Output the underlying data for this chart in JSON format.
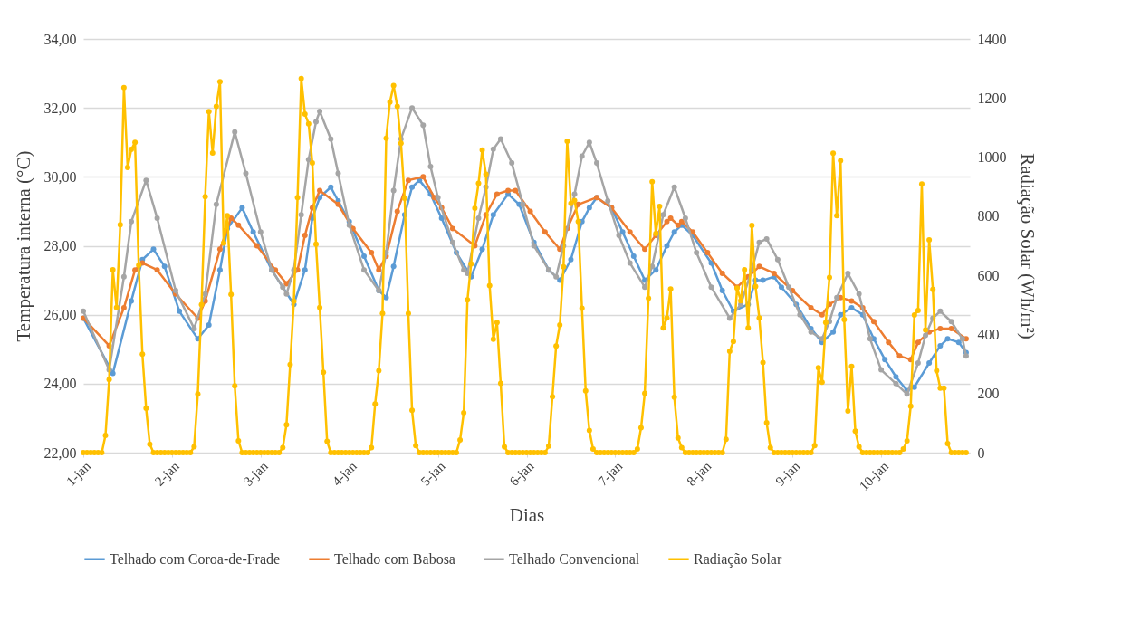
{
  "chart_data": {
    "type": "line",
    "xlabel": "Dias",
    "ylabel": "Temperatura interna (°C)",
    "y2label": "Radiação Solar (Wh/m²)",
    "xlim": [
      "--01-01T00:00",
      "--01-11T00:00"
    ],
    "xticks": [
      {
        "value": "--01-01",
        "label": "1-jan"
      },
      {
        "value": "--01-02",
        "label": "2-jan"
      },
      {
        "value": "--01-03",
        "label": "3-jan"
      },
      {
        "value": "--01-04",
        "label": "4-jan"
      },
      {
        "value": "--01-05",
        "label": "5-jan"
      },
      {
        "value": "--01-06",
        "label": "6-jan"
      },
      {
        "value": "--01-07",
        "label": "7-jan"
      },
      {
        "value": "--01-08",
        "label": "8-jan"
      },
      {
        "value": "--01-09",
        "label": "9-jan"
      },
      {
        "value": "--01-10",
        "label": "10-jan"
      }
    ],
    "ylim": [
      22,
      34
    ],
    "yticks": [
      {
        "value": 22,
        "label": "22,00"
      },
      {
        "value": 24,
        "label": "24,00"
      },
      {
        "value": 26,
        "label": "26,00"
      },
      {
        "value": 28,
        "label": "28,00"
      },
      {
        "value": 30,
        "label": "30,00"
      },
      {
        "value": 32,
        "label": "32,00"
      },
      {
        "value": 34,
        "label": "34,00"
      }
    ],
    "y2lim": [
      0,
      1400
    ],
    "y2ticks": [
      0,
      200,
      400,
      600,
      800,
      1000,
      1200,
      1400
    ],
    "grid": "y",
    "legend": "bottom",
    "marker": "circle",
    "x": [
      "--01-01T00:00",
      "--01-01T01:00",
      "--01-01T02:00",
      "--01-01T03:00",
      "--01-01T04:00",
      "--01-01T05:00",
      "--01-01T06:00",
      "--01-01T07:00",
      "--01-01T08:00",
      "--01-01T09:00",
      "--01-01T10:00",
      "--01-01T11:00",
      "--01-01T12:00",
      "--01-01T13:00",
      "--01-01T14:00",
      "--01-01T15:00",
      "--01-01T16:00",
      "--01-01T17:00",
      "--01-01T18:00",
      "--01-01T19:00",
      "--01-01T20:00",
      "--01-01T21:00",
      "--01-01T22:00",
      "--01-01T23:00",
      "--01-02T00:00",
      "--01-02T01:00",
      "--01-02T02:00",
      "--01-02T03:00",
      "--01-02T04:00",
      "--01-02T05:00",
      "--01-02T06:00",
      "--01-02T07:00",
      "--01-02T08:00",
      "--01-02T09:00",
      "--01-02T10:00",
      "--01-02T11:00",
      "--01-02T12:00",
      "--01-02T13:00",
      "--01-02T14:00",
      "--01-02T15:00",
      "--01-02T16:00",
      "--01-02T17:00",
      "--01-02T18:00",
      "--01-02T19:00",
      "--01-02T20:00",
      "--01-02T21:00",
      "--01-02T22:00",
      "--01-02T23:00",
      "--01-03T00:00",
      "--01-03T01:00",
      "--01-03T02:00",
      "--01-03T03:00",
      "--01-03T04:00",
      "--01-03T05:00",
      "--01-03T06:00",
      "--01-03T07:00",
      "--01-03T08:00",
      "--01-03T09:00",
      "--01-03T10:00",
      "--01-03T11:00",
      "--01-03T12:00",
      "--01-03T13:00",
      "--01-03T14:00",
      "--01-03T15:00",
      "--01-03T16:00",
      "--01-03T17:00",
      "--01-03T18:00",
      "--01-03T19:00",
      "--01-03T20:00",
      "--01-03T21:00",
      "--01-03T22:00",
      "--01-03T23:00",
      "--01-04T00:00",
      "--01-04T01:00",
      "--01-04T02:00",
      "--01-04T03:00",
      "--01-04T04:00",
      "--01-04T05:00",
      "--01-04T06:00",
      "--01-04T07:00",
      "--01-04T08:00",
      "--01-04T09:00",
      "--01-04T10:00",
      "--01-04T11:00",
      "--01-04T12:00",
      "--01-04T13:00",
      "--01-04T14:00",
      "--01-04T15:00",
      "--01-04T16:00",
      "--01-04T17:00",
      "--01-04T18:00",
      "--01-04T19:00",
      "--01-04T20:00",
      "--01-04T21:00",
      "--01-04T22:00",
      "--01-04T23:00",
      "--01-05T00:00",
      "--01-05T01:00",
      "--01-05T02:00",
      "--01-05T03:00",
      "--01-05T04:00",
      "--01-05T05:00",
      "--01-05T06:00",
      "--01-05T07:00",
      "--01-05T08:00",
      "--01-05T09:00",
      "--01-05T10:00",
      "--01-05T11:00",
      "--01-05T12:00",
      "--01-05T13:00",
      "--01-05T14:00",
      "--01-05T15:00",
      "--01-05T16:00",
      "--01-05T17:00",
      "--01-05T18:00",
      "--01-05T19:00",
      "--01-05T20:00",
      "--01-05T21:00",
      "--01-05T22:00",
      "--01-05T23:00",
      "--01-06T00:00",
      "--01-06T01:00",
      "--01-06T02:00",
      "--01-06T03:00",
      "--01-06T04:00",
      "--01-06T05:00",
      "--01-06T06:00",
      "--01-06T07:00",
      "--01-06T08:00",
      "--01-06T09:00",
      "--01-06T10:00",
      "--01-06T11:00",
      "--01-06T12:00",
      "--01-06T13:00",
      "--01-06T14:00",
      "--01-06T15:00",
      "--01-06T16:00",
      "--01-06T17:00",
      "--01-06T18:00",
      "--01-06T19:00",
      "--01-06T20:00",
      "--01-06T21:00",
      "--01-06T22:00",
      "--01-06T23:00",
      "--01-07T00:00",
      "--01-07T01:00",
      "--01-07T02:00",
      "--01-07T03:00",
      "--01-07T04:00",
      "--01-07T05:00",
      "--01-07T06:00",
      "--01-07T07:00",
      "--01-07T08:00",
      "--01-07T09:00",
      "--01-07T10:00",
      "--01-07T11:00",
      "--01-07T12:00",
      "--01-07T13:00",
      "--01-07T14:00",
      "--01-07T15:00",
      "--01-07T16:00",
      "--01-07T17:00",
      "--01-07T18:00",
      "--01-07T19:00",
      "--01-07T20:00",
      "--01-07T21:00",
      "--01-07T22:00",
      "--01-07T23:00",
      "--01-08T00:00",
      "--01-08T01:00",
      "--01-08T02:00",
      "--01-08T03:00",
      "--01-08T04:00",
      "--01-08T05:00",
      "--01-08T06:00",
      "--01-08T07:00",
      "--01-08T08:00",
      "--01-08T09:00",
      "--01-08T10:00",
      "--01-08T11:00",
      "--01-08T12:00",
      "--01-08T13:00",
      "--01-08T14:00",
      "--01-08T15:00",
      "--01-08T16:00",
      "--01-08T17:00",
      "--01-08T18:00",
      "--01-08T19:00",
      "--01-08T20:00",
      "--01-08T21:00",
      "--01-08T22:00",
      "--01-08T23:00",
      "--01-09T00:00",
      "--01-09T01:00",
      "--01-09T02:00",
      "--01-09T03:00",
      "--01-09T04:00",
      "--01-09T05:00",
      "--01-09T06:00",
      "--01-09T07:00",
      "--01-09T08:00",
      "--01-09T09:00",
      "--01-09T10:00",
      "--01-09T11:00",
      "--01-09T12:00",
      "--01-09T13:00",
      "--01-09T14:00",
      "--01-09T15:00",
      "--01-09T16:00",
      "--01-09T17:00",
      "--01-09T18:00",
      "--01-09T19:00",
      "--01-09T20:00",
      "--01-09T21:00",
      "--01-09T22:00",
      "--01-09T23:00",
      "--01-10T00:00",
      "--01-10T01:00",
      "--01-10T02:00",
      "--01-10T03:00",
      "--01-10T04:00",
      "--01-10T05:00",
      "--01-10T06:00",
      "--01-10T07:00",
      "--01-10T08:00",
      "--01-10T09:00",
      "--01-10T10:00",
      "--01-10T11:00",
      "--01-10T12:00",
      "--01-10T13:00",
      "--01-10T14:00",
      "--01-10T15:00",
      "--01-10T16:00",
      "--01-10T17:00",
      "--01-10T18:00",
      "--01-10T19:00",
      "--01-10T20:00",
      "--01-10T21:00",
      "--01-10T22:00",
      "--01-10T23:00"
    ],
    "series": [
      {
        "name": "Telhado com Coroa-de-Frade",
        "color": "#5b9bd5",
        "x": [
          "--01-01T00:00",
          "--01-01T08:00",
          "--01-01T13:00",
          "--01-01T16:00",
          "--01-01T19:00",
          "--01-01T22:00",
          "--01-02T02:00",
          "--01-02T07:00",
          "--01-02T10:00",
          "--01-02T13:00",
          "--01-02T15:00",
          "--01-02T19:00",
          "--01-02T22:00",
          "--01-03T03:00",
          "--01-03T09:00",
          "--01-03T12:00",
          "--01-03T14:00",
          "--01-03T16:00",
          "--01-03T19:00",
          "--01-03T21:00",
          "--01-04T00:00",
          "--01-04T04:00",
          "--01-04T08:00",
          "--01-04T10:00",
          "--01-04T12:00",
          "--01-04T15:00",
          "--01-04T17:00",
          "--01-04T19:00",
          "--01-04T22:00",
          "--01-05T01:00",
          "--01-05T05:00",
          "--01-05T09:00",
          "--01-05T12:00",
          "--01-05T15:00",
          "--01-05T19:00",
          "--01-05T22:00",
          "--01-06T02:00",
          "--01-06T06:00",
          "--01-06T09:00",
          "--01-06T12:00",
          "--01-06T15:00",
          "--01-06T17:00",
          "--01-06T19:00",
          "--01-06T23:00",
          "--01-07T02:00",
          "--01-07T05:00",
          "--01-07T08:00",
          "--01-07T11:00",
          "--01-07T14:00",
          "--01-07T16:00",
          "--01-07T18:00",
          "--01-07T21:00",
          "--01-08T02:00",
          "--01-08T05:00",
          "--01-08T08:00",
          "--01-08T12:00",
          "--01-08T14:00",
          "--01-08T16:00",
          "--01-08T19:00",
          "--01-08T21:00",
          "--01-09T01:00",
          "--01-09T05:00",
          "--01-09T08:00",
          "--01-09T11:00",
          "--01-09T13:00",
          "--01-09T16:00",
          "--01-09T19:00",
          "--01-09T22:00",
          "--01-10T01:00",
          "--01-10T04:00",
          "--01-10T07:00",
          "--01-10T09:00",
          "--01-10T13:00",
          "--01-10T16:00",
          "--01-10T18:00",
          "--01-10T21:00",
          "--01-10T23:00"
        ],
        "values": [
          25.9,
          24.3,
          26.4,
          27.6,
          27.9,
          27.4,
          26.1,
          25.3,
          25.7,
          27.3,
          28.5,
          29.1,
          28.4,
          27.3,
          26.3,
          27.3,
          28.8,
          29.4,
          29.7,
          29.3,
          28.7,
          27.7,
          26.7,
          26.5,
          27.4,
          28.9,
          29.7,
          29.9,
          29.5,
          28.8,
          27.8,
          27.1,
          27.9,
          28.9,
          29.5,
          29.2,
          28.1,
          27.3,
          27.0,
          27.6,
          28.7,
          29.1,
          29.4,
          29.1,
          28.4,
          27.7,
          27.0,
          27.3,
          28.0,
          28.4,
          28.6,
          28.3,
          27.5,
          26.7,
          26.1,
          26.3,
          27.0,
          27.0,
          27.1,
          26.8,
          26.3,
          25.6,
          25.2,
          25.5,
          26.0,
          26.2,
          26.0,
          25.3,
          24.7,
          24.2,
          23.8,
          23.9,
          24.6,
          25.1,
          25.3,
          25.2,
          24.9
        ]
      },
      {
        "name": "Telhado com Babosa",
        "color": "#ed7d31",
        "x": [
          "--01-01T00:00",
          "--01-01T07:00",
          "--01-01T11:00",
          "--01-01T14:00",
          "--01-01T16:00",
          "--01-01T20:00",
          "--01-02T01:00",
          "--01-02T07:00",
          "--01-02T09:00",
          "--01-02T13:00",
          "--01-02T16:00",
          "--01-02T18:00",
          "--01-02T23:00",
          "--01-03T04:00",
          "--01-03T07:00",
          "--01-03T10:00",
          "--01-03T12:00",
          "--01-03T14:00",
          "--01-03T16:00",
          "--01-03T21:00",
          "--01-04T01:00",
          "--01-04T06:00",
          "--01-04T08:00",
          "--01-04T10:00",
          "--01-04T13:00",
          "--01-04T16:00",
          "--01-04T20:00",
          "--01-04T23:00",
          "--01-05T01:00",
          "--01-05T04:00",
          "--01-05T10:00",
          "--01-05T13:00",
          "--01-05T16:00",
          "--01-05T19:00",
          "--01-05T21:00",
          "--01-06T01:00",
          "--01-06T05:00",
          "--01-06T09:00",
          "--01-06T11:00",
          "--01-06T14:00",
          "--01-06T19:00",
          "--01-06T23:00",
          "--01-07T04:00",
          "--01-07T08:00",
          "--01-07T11:00",
          "--01-07T14:00",
          "--01-07T15:00",
          "--01-07T17:00",
          "--01-07T18:00",
          "--01-07T21:00",
          "--01-08T01:00",
          "--01-08T05:00",
          "--01-08T09:00",
          "--01-08T12:00",
          "--01-08T15:00",
          "--01-08T19:00",
          "--01-09T00:00",
          "--01-09T05:00",
          "--01-09T08:00",
          "--01-09T10:00",
          "--01-09T13:00",
          "--01-09T16:00",
          "--01-09T19:00",
          "--01-09T22:00",
          "--01-10T02:00",
          "--01-10T05:00",
          "--01-10T08:00",
          "--01-10T10:00",
          "--01-10T13:00",
          "--01-10T16:00",
          "--01-10T19:00",
          "--01-10T23:00"
        ],
        "values": [
          25.9,
          25.1,
          26.2,
          27.3,
          27.5,
          27.3,
          26.6,
          25.9,
          26.4,
          27.9,
          28.8,
          28.6,
          28.0,
          27.3,
          26.9,
          27.3,
          28.3,
          29.1,
          29.6,
          29.2,
          28.5,
          27.8,
          27.3,
          27.7,
          29.0,
          29.9,
          30.0,
          29.4,
          29.1,
          28.5,
          28.0,
          28.9,
          29.5,
          29.6,
          29.6,
          29.0,
          28.4,
          27.9,
          28.5,
          29.2,
          29.4,
          29.1,
          28.4,
          27.9,
          28.3,
          28.7,
          28.8,
          28.6,
          28.7,
          28.4,
          27.8,
          27.2,
          26.8,
          27.1,
          27.4,
          27.2,
          26.7,
          26.2,
          26.0,
          26.3,
          26.5,
          26.4,
          26.2,
          25.8,
          25.2,
          24.8,
          24.7,
          25.2,
          25.5,
          25.6,
          25.6,
          25.3
        ]
      },
      {
        "name": "Telhado Convencional",
        "color": "#a5a5a5",
        "x": [
          "--01-01T00:00",
          "--01-01T07:00",
          "--01-01T11:00",
          "--01-01T13:00",
          "--01-01T17:00",
          "--01-01T20:00",
          "--01-02T01:00",
          "--01-02T06:00",
          "--01-02T09:00",
          "--01-02T12:00",
          "--01-02T17:00",
          "--01-02T20:00",
          "--01-03T00:00",
          "--01-03T03:00",
          "--01-03T06:00",
          "--01-03T07:00",
          "--01-03T09:00",
          "--01-03T11:00",
          "--01-03T13:00",
          "--01-03T15:00",
          "--01-03T16:00",
          "--01-03T19:00",
          "--01-03T21:00",
          "--01-04T00:00",
          "--01-04T04:00",
          "--01-04T08:00",
          "--01-04T10:00",
          "--01-04T12:00",
          "--01-04T14:00",
          "--01-04T17:00",
          "--01-04T20:00",
          "--01-04T22:00",
          "--01-05T00:00",
          "--01-05T04:00",
          "--01-05T07:00",
          "--01-05T08:00",
          "--01-05T11:00",
          "--01-05T13:00",
          "--01-05T15:00",
          "--01-05T17:00",
          "--01-05T20:00",
          "--01-05T23:00",
          "--01-06T02:00",
          "--01-06T06:00",
          "--01-06T08:00",
          "--01-06T10:00",
          "--01-06T13:00",
          "--01-06T15:00",
          "--01-06T17:00",
          "--01-06T19:00",
          "--01-06T22:00",
          "--01-07T01:00",
          "--01-07T04:00",
          "--01-07T08:00",
          "--01-07T10:00",
          "--01-07T13:00",
          "--01-07T16:00",
          "--01-07T19:00",
          "--01-07T22:00",
          "--01-08T02:00",
          "--01-08T07:00",
          "--01-08T10:00",
          "--01-08T13:00",
          "--01-08T15:00",
          "--01-08T17:00",
          "--01-08T20:00",
          "--01-08T23:00",
          "--01-09T02:00",
          "--01-09T05:00",
          "--01-09T08:00",
          "--01-09T10:00",
          "--01-09T12:00",
          "--01-09T15:00",
          "--01-09T18:00",
          "--01-09T21:00",
          "--01-10T00:00",
          "--01-10T04:00",
          "--01-10T07:00",
          "--01-10T10:00",
          "--01-10T12:00",
          "--01-10T14:00",
          "--01-10T16:00",
          "--01-10T19:00",
          "--01-10T22:00",
          "--01-10T23:00"
        ],
        "values": [
          26.1,
          24.4,
          27.1,
          28.7,
          29.9,
          28.8,
          26.7,
          25.6,
          26.6,
          29.2,
          31.3,
          30.1,
          28.4,
          27.3,
          26.8,
          26.6,
          27.3,
          28.9,
          30.5,
          31.6,
          31.9,
          31.1,
          30.1,
          28.6,
          27.3,
          26.7,
          27.8,
          29.6,
          31.1,
          32.0,
          31.5,
          30.3,
          29.4,
          28.1,
          27.3,
          27.2,
          28.8,
          29.7,
          30.8,
          31.1,
          30.4,
          29.2,
          28.0,
          27.3,
          27.1,
          28.0,
          29.5,
          30.6,
          31.0,
          30.4,
          29.3,
          28.3,
          27.5,
          26.8,
          27.4,
          28.9,
          29.7,
          28.8,
          27.8,
          26.8,
          25.9,
          26.3,
          27.3,
          28.1,
          28.2,
          27.6,
          26.8,
          26.0,
          25.5,
          25.3,
          25.8,
          26.5,
          27.2,
          26.6,
          25.3,
          24.4,
          24.0,
          23.7,
          24.6,
          25.4,
          25.9,
          26.1,
          25.8,
          25.3,
          24.8
        ]
      },
      {
        "name": "Radiação Solar",
        "color": "#ffc000",
        "axis": "y2",
        "values": [
          0,
          0,
          0,
          0,
          0,
          0,
          58,
          247,
          619,
          491,
          771,
          1235,
          965,
          1026,
          1050,
          634,
          333,
          150,
          28,
          0,
          0,
          0,
          0,
          0,
          0,
          0,
          0,
          0,
          0,
          0,
          20,
          198,
          501,
          866,
          1154,
          1014,
          1172,
          1255,
          709,
          802,
          535,
          226,
          40,
          0,
          0,
          0,
          0,
          0,
          0,
          0,
          0,
          0,
          0,
          0,
          17,
          94,
          298,
          512,
          863,
          1266,
          1146,
          1113,
          980,
          705,
          491,
          272,
          38,
          0,
          0,
          0,
          0,
          0,
          0,
          0,
          0,
          0,
          0,
          0,
          17,
          165,
          277,
          471,
          1064,
          1186,
          1242,
          1172,
          1047,
          861,
          471,
          143,
          24,
          0,
          0,
          0,
          0,
          0,
          0,
          0,
          0,
          0,
          0,
          0,
          43,
          135,
          517,
          639,
          827,
          911,
          1024,
          942,
          565,
          384,
          440,
          234,
          20,
          0,
          0,
          0,
          0,
          0,
          0,
          0,
          0,
          0,
          0,
          0,
          22,
          189,
          361,
          432,
          629,
          1054,
          843,
          853,
          782,
          489,
          209,
          75,
          12,
          0,
          0,
          0,
          0,
          0,
          0,
          0,
          0,
          0,
          0,
          0,
          12,
          84,
          201,
          522,
          917,
          741,
          833,
          422,
          456,
          554,
          188,
          50,
          17,
          0,
          0,
          0,
          0,
          0,
          0,
          0,
          0,
          0,
          0,
          0,
          45,
          343,
          376,
          557,
          514,
          619,
          422,
          769,
          562,
          456,
          305,
          101,
          17,
          0,
          0,
          0,
          0,
          0,
          0,
          0,
          0,
          0,
          0,
          0,
          24,
          287,
          238,
          440,
          593,
          1013,
          802,
          988,
          450,
          141,
          292,
          73,
          20,
          0,
          0,
          0,
          0,
          0,
          0,
          0,
          0,
          0,
          0,
          0,
          12,
          40,
          157,
          466,
          481,
          909,
          415,
          720,
          552,
          277,
          218,
          218,
          31,
          0,
          0,
          0,
          0,
          0
        ]
      }
    ]
  }
}
